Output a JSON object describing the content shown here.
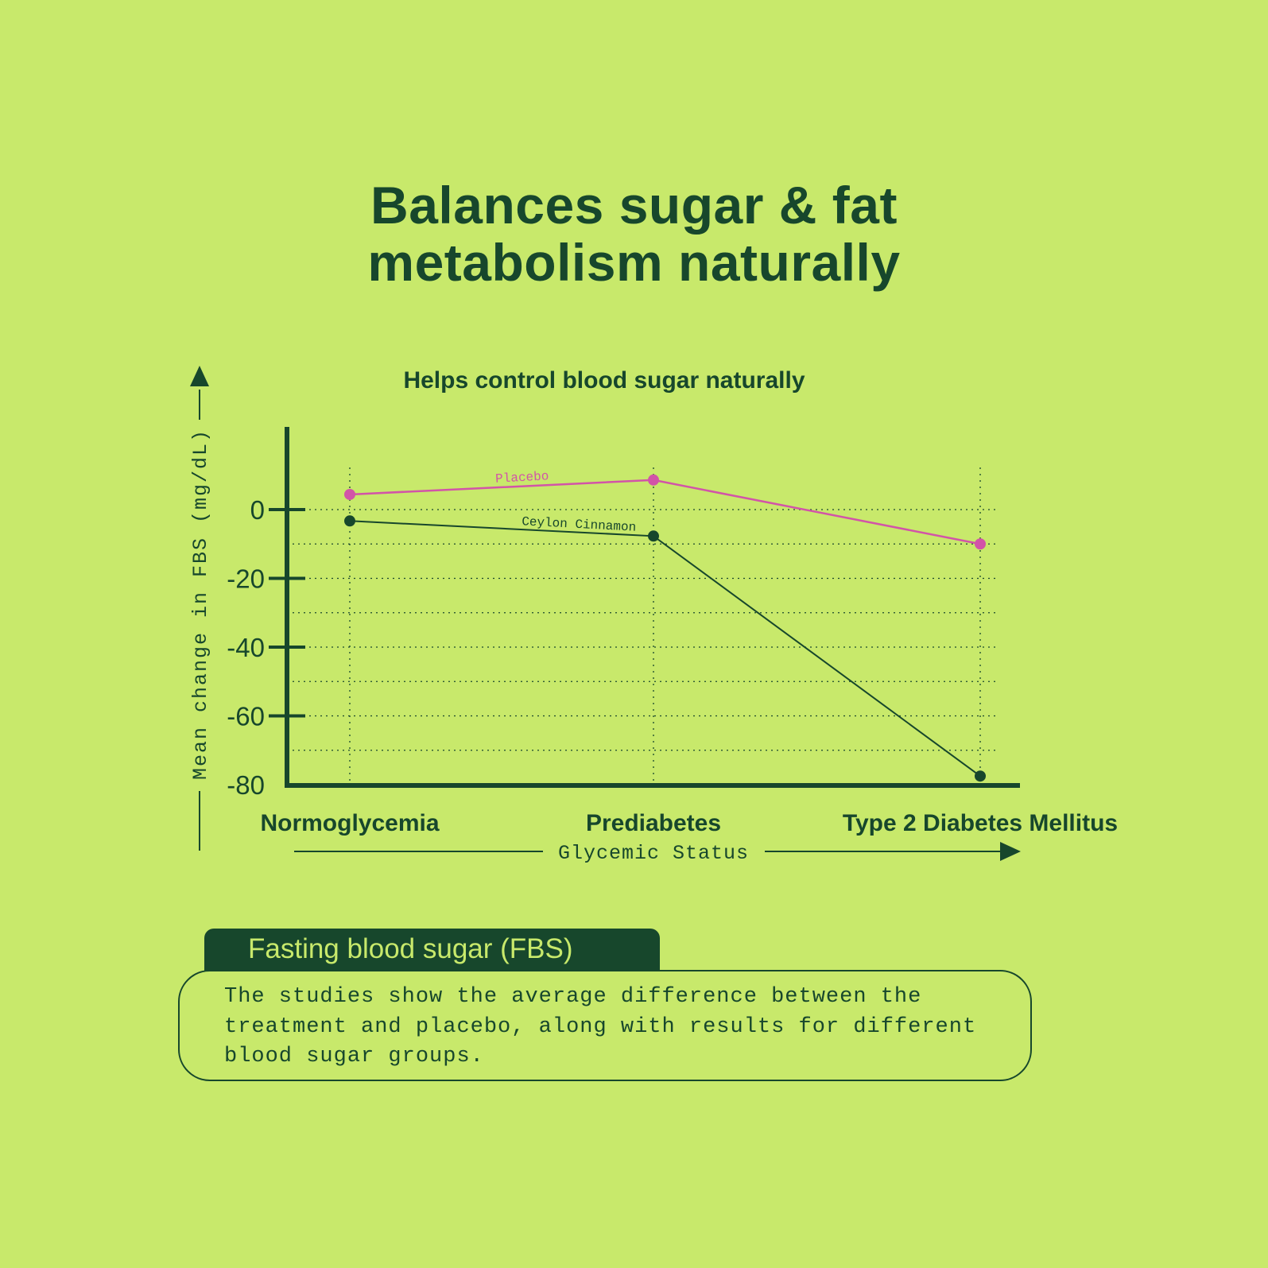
{
  "title": {
    "line1": "Balances sugar & fat",
    "line2": "metabolism naturally"
  },
  "chart_data": {
    "type": "line",
    "title": "Helps control blood sugar naturally",
    "xlabel": "Glycemic Status",
    "ylabel": "Mean change in FBS (mg/dL)",
    "categories": [
      "Normoglycemia",
      "Prediabetes",
      "Type 2 Diabetes Mellitus"
    ],
    "ylim": [
      -80,
      20
    ],
    "yticks": [
      "0",
      "-20",
      "-40",
      "-60",
      "-80"
    ],
    "ytick_values": [
      0,
      -20,
      -40,
      -60,
      -80
    ],
    "grid": true,
    "series": [
      {
        "name": "Placebo",
        "values": [
          4.4,
          8.6,
          -10
        ],
        "color": "#d254a8"
      },
      {
        "name": "Ceylon Cinnamon",
        "values": [
          -3.3,
          -7.7,
          -77.5
        ],
        "color": "#17472c"
      }
    ]
  },
  "info": {
    "tab_label": "Fasting blood sugar (FBS)",
    "lines": [
      "The studies show the average difference between the",
      "treatment and placebo, along with results for different",
      "blood sugar groups."
    ]
  }
}
